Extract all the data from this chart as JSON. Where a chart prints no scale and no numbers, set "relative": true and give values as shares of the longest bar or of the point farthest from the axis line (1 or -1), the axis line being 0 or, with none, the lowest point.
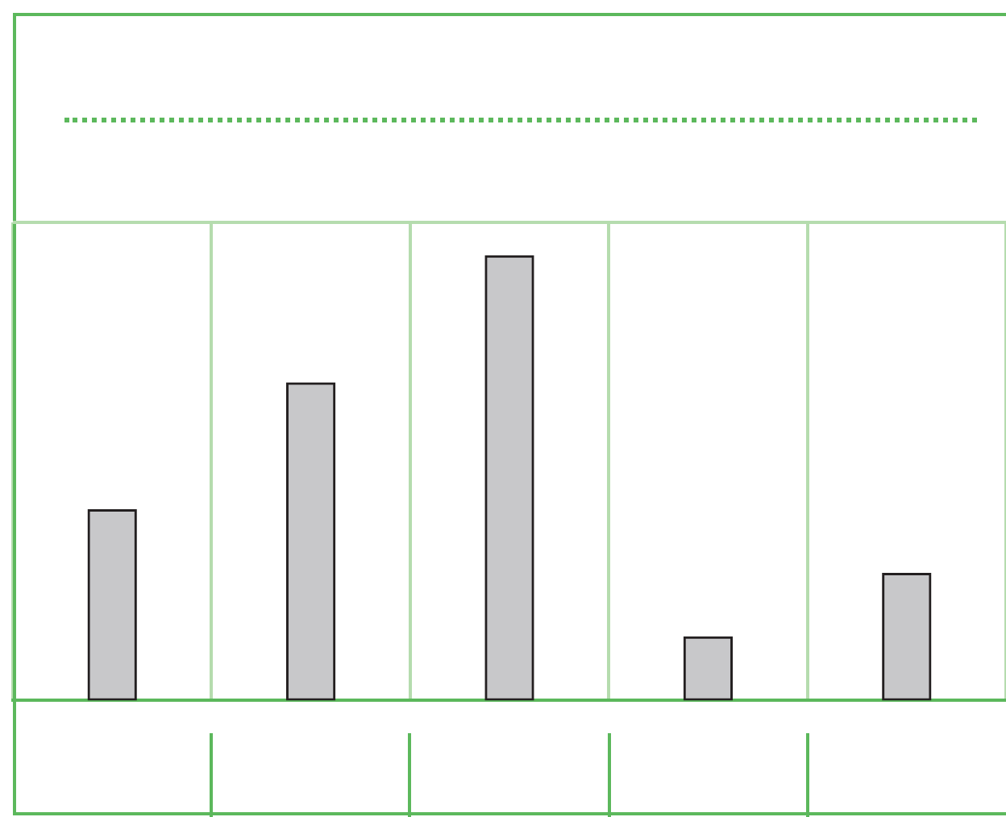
{
  "chart_data": {
    "type": "bar",
    "relative": true,
    "categories": [
      null,
      null,
      null,
      null,
      null
    ],
    "values": [
      0.4286,
      0.7143,
      1,
      0.1429,
      0.2857
    ],
    "color": "#c8c8ca",
    "grid": "x",
    "legend": false
  }
}
